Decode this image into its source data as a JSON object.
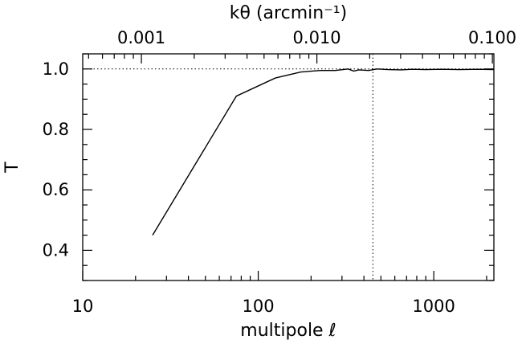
{
  "chart_data": {
    "type": "line",
    "xlabel": "multipole ℓ",
    "ylabel": "T",
    "top_axis_label": "kθ (arcmin⁻¹)",
    "x_scale": "log",
    "xlim": [
      10,
      2200
    ],
    "ylim": [
      0.3,
      1.05
    ],
    "top_axis_scale": "log",
    "top_axis_lim": [
      0.000463,
      0.102
    ],
    "x_ticks": [
      {
        "value": 10,
        "label": "10"
      },
      {
        "value": 100,
        "label": "100"
      },
      {
        "value": 1000,
        "label": "1000"
      }
    ],
    "y_ticks": [
      {
        "value": 0.4,
        "label": "0.4"
      },
      {
        "value": 0.6,
        "label": "0.6"
      },
      {
        "value": 0.8,
        "label": "0.8"
      },
      {
        "value": 1.0,
        "label": "1.0"
      }
    ],
    "top_ticks": [
      {
        "value": 0.001,
        "label": "0.001"
      },
      {
        "value": 0.01,
        "label": "0.010"
      },
      {
        "value": 0.1,
        "label": "0.100"
      }
    ],
    "series": [
      {
        "x": [
          25,
          75,
          125,
          175,
          225,
          275,
          325,
          350,
          375,
          425,
          475,
          550,
          650,
          750,
          900,
          1100,
          1400,
          1800,
          2200
        ],
        "y": [
          0.45,
          0.91,
          0.97,
          0.99,
          0.995,
          0.995,
          1.0,
          0.993,
          0.997,
          0.995,
          1.0,
          0.998,
          0.997,
          0.999,
          0.998,
          0.999,
          0.998,
          0.999,
          0.998
        ]
      }
    ],
    "reference_lines": [
      {
        "orientation": "horizontal",
        "value": 1.0,
        "style": "dotted"
      },
      {
        "orientation": "vertical",
        "value": 450,
        "style": "dotted"
      }
    ],
    "grid": false,
    "legend": "none"
  }
}
